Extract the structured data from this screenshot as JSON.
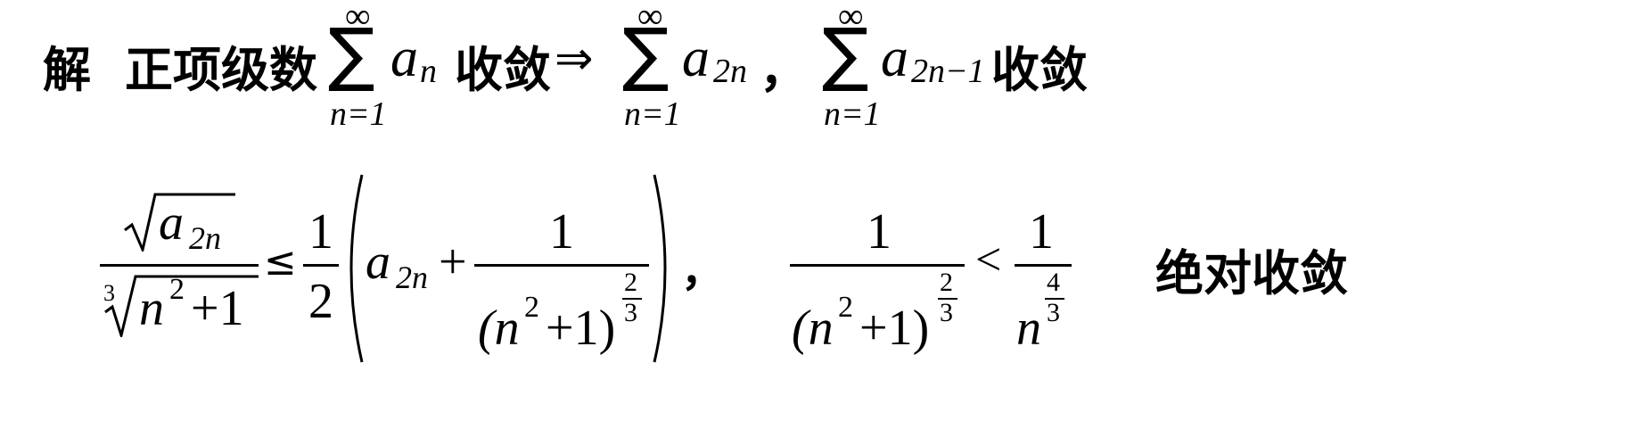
{
  "line1": {
    "jie": "解",
    "label": "正项级数",
    "sum1": {
      "top": "∞",
      "bottom": "n=1",
      "term": "a",
      "sub": "n"
    },
    "converge1": "收敛",
    "implies": "⇒",
    "sum2": {
      "top": "∞",
      "bottom": "n=1",
      "term": "a",
      "sub": "2n"
    },
    "comma1": "，",
    "sum3": {
      "top": "∞",
      "bottom": "n=1",
      "term": "a",
      "sub": "2n−1"
    },
    "converge2": "收敛"
  },
  "line2": {
    "frac1": {
      "num": {
        "term": "a",
        "sub": "2n"
      },
      "den": {
        "root_index": "3",
        "base": "n",
        "exp": "2",
        "rest": "+1"
      }
    },
    "leq": "≤",
    "half": {
      "num": "1",
      "den": "2"
    },
    "inner": {
      "term": "a",
      "sub": "2n",
      "plus": "+",
      "frac": {
        "num": "1",
        "den_open": "(n",
        "den_exp": "2",
        "den_close": "+1)",
        "pow_num": "2",
        "pow_den": "3"
      }
    },
    "comma2": "，",
    "frac3": {
      "num": "1",
      "den_open": "(n",
      "den_exp": "2",
      "den_close": "+1)",
      "pow_num": "2",
      "pow_den": "3"
    },
    "lt": "<",
    "frac4": {
      "num": "1",
      "den_base": "n",
      "pow_num": "4",
      "pow_den": "3"
    },
    "result": "绝对收敛"
  }
}
